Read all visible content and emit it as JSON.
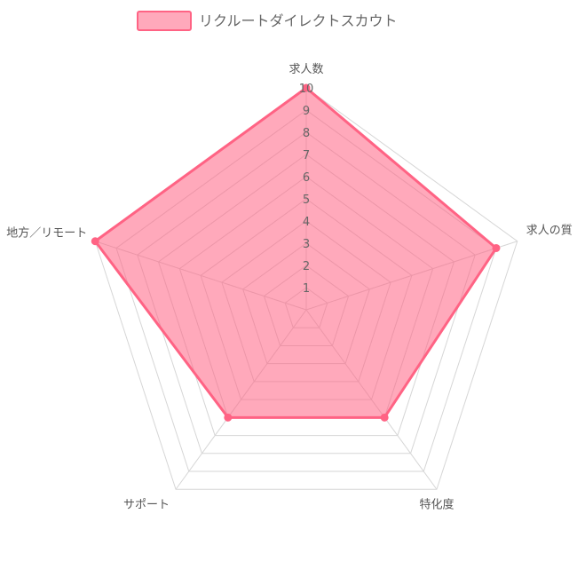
{
  "chart_data": {
    "type": "radar",
    "axes": [
      "求人数",
      "求人の質",
      "特化度",
      "サポート",
      "地方／リモート"
    ],
    "ticks": [
      "1",
      "2",
      "3",
      "4",
      "5",
      "6",
      "7",
      "8",
      "9",
      "10"
    ],
    "range": [
      0,
      10
    ],
    "series": [
      {
        "name": "リクルートダイレクトスカウト",
        "values": [
          10,
          9,
          6,
          6,
          10
        ],
        "color": "#ff6384",
        "fill": "rgba(255, 99, 132, 0.55)"
      }
    ],
    "grid": true,
    "legend": "top-center"
  }
}
